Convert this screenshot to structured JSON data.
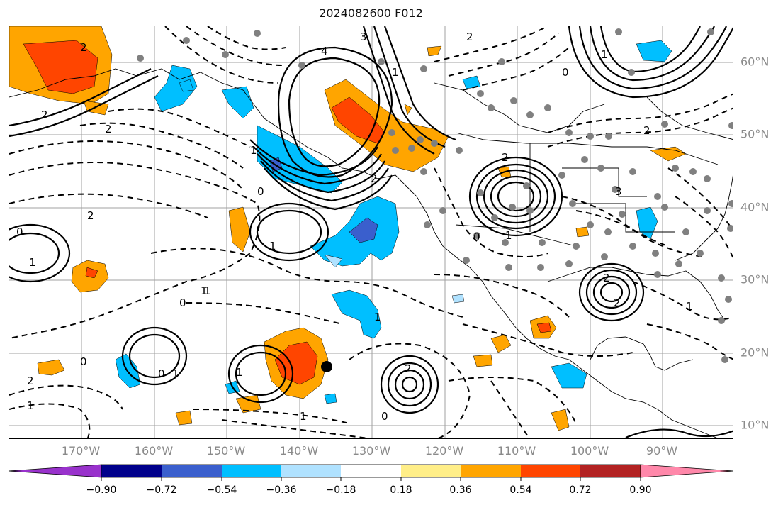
{
  "title": "2024082600 F012",
  "lon_labels": [
    "170°W",
    "160°W",
    "150°W",
    "140°W",
    "130°W",
    "120°W",
    "110°W",
    "100°W",
    "90°W"
  ],
  "lat_labels": [
    "60°N",
    "50°N",
    "40°N",
    "30°N",
    "20°N",
    "10°N"
  ],
  "colorbar": {
    "colors": [
      "#9932cc",
      "#00008b",
      "#3a5fcd",
      "#00bfff",
      "#b0e2ff",
      "#ffffff",
      "#ffee88",
      "#ffa500",
      "#ff4500",
      "#b22222",
      "#ff88aa"
    ],
    "tick_labels": [
      "−0.90",
      "−0.72",
      "−0.54",
      "−0.36",
      "−0.18",
      "0.18",
      "0.36",
      "0.54",
      "0.72",
      "0.90"
    ]
  },
  "contour_labels": [
    "2",
    "2",
    "2",
    "0",
    "1",
    "2",
    "1",
    "0",
    "1",
    "0",
    "1",
    "2",
    "1",
    "0",
    "0",
    "2",
    "1",
    "1",
    "3",
    "2",
    "2",
    "1",
    "2",
    "1",
    "0",
    "2",
    "2",
    "3",
    "1",
    "1",
    "1",
    "2",
    "1",
    "0",
    "4",
    "1",
    "0"
  ]
}
